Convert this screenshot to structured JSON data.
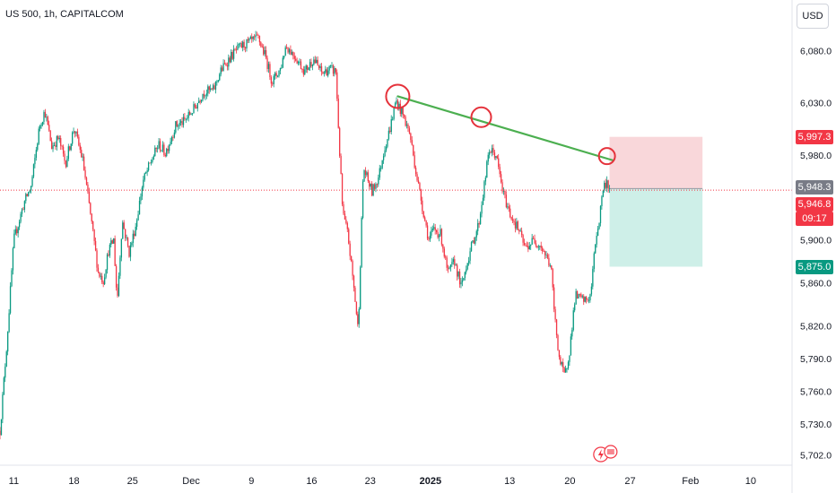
{
  "header": {
    "symbol": "US 500, 1h, CAPITALCOM",
    "currency": "USD"
  },
  "colors": {
    "up": "#089981",
    "down": "#f23645",
    "trendline": "#4caf50",
    "stop_zone": "#f7c9cd",
    "target_zone": "#c2ebe2",
    "circle": "#e5323b",
    "last_price_bg": "#787b86",
    "axis_text": "#131722",
    "grid": "#f0f3fa"
  },
  "chart_data": {
    "type": "candlestick",
    "instrument": "US 500",
    "timeframe": "1h",
    "source": "CAPITALCOM",
    "y_axis": {
      "ticks": [
        6080,
        6030,
        5980,
        5900,
        5860,
        5820,
        5790,
        5760,
        5730,
        5702
      ],
      "tick_labels": [
        "6,080.0",
        "6,030.0",
        "5,980.0",
        "5,900.0",
        "5,860.0",
        "5,820.0",
        "5,790.0",
        "5,760.0",
        "5,730.0",
        "5,702.0"
      ],
      "scale": "log",
      "range": [
        5696,
        6129
      ]
    },
    "x_axis": {
      "ticks": [
        "11",
        "18",
        "25",
        "Dec",
        "9",
        "16",
        "23",
        "2025",
        "13",
        "20",
        "27",
        "Feb",
        "10"
      ],
      "bold_ticks": [
        "2025"
      ],
      "range_days": [
        0,
        92
      ]
    },
    "price_path": [
      [
        0.0,
        5724
      ],
      [
        0.8,
        5805
      ],
      [
        1.6,
        5900
      ],
      [
        2.8,
        5935
      ],
      [
        3.6,
        5950
      ],
      [
        4.6,
        6008
      ],
      [
        5.2,
        6022
      ],
      [
        6.0,
        5988
      ],
      [
        6.8,
        5996
      ],
      [
        7.6,
        5972
      ],
      [
        8.6,
        6006
      ],
      [
        9.6,
        5975
      ],
      [
        10.4,
        5930
      ],
      [
        11.4,
        5870
      ],
      [
        12.0,
        5862
      ],
      [
        12.6,
        5890
      ],
      [
        13.2,
        5900
      ],
      [
        13.6,
        5842
      ],
      [
        14.2,
        5918
      ],
      [
        15.0,
        5888
      ],
      [
        15.8,
        5915
      ],
      [
        16.6,
        5955
      ],
      [
        17.6,
        5975
      ],
      [
        18.4,
        5990
      ],
      [
        19.2,
        5982
      ],
      [
        20.4,
        6008
      ],
      [
        21.4,
        6012
      ],
      [
        22.6,
        6025
      ],
      [
        23.6,
        6040
      ],
      [
        24.8,
        6042
      ],
      [
        25.6,
        6060
      ],
      [
        26.6,
        6072
      ],
      [
        27.4,
        6080
      ],
      [
        28.2,
        6085
      ],
      [
        29.0,
        6088
      ],
      [
        30.0,
        6092
      ],
      [
        30.8,
        6075
      ],
      [
        31.6,
        6050
      ],
      [
        32.6,
        6063
      ],
      [
        33.2,
        6085
      ],
      [
        34.2,
        6075
      ],
      [
        35.4,
        6060
      ],
      [
        36.4,
        6072
      ],
      [
        37.4,
        6058
      ],
      [
        38.2,
        6062
      ],
      [
        39.0,
        6060
      ],
      [
        39.4,
        5990
      ],
      [
        39.8,
        5925
      ],
      [
        40.4,
        5905
      ],
      [
        41.2,
        5848
      ],
      [
        41.6,
        5815
      ],
      [
        42.2,
        5968
      ],
      [
        43.2,
        5945
      ],
      [
        44.0,
        5960
      ],
      [
        44.6,
        5985
      ],
      [
        45.2,
        6002
      ],
      [
        46.0,
        6032
      ],
      [
        46.8,
        6018
      ],
      [
        47.6,
        6000
      ],
      [
        48.4,
        5960
      ],
      [
        49.2,
        5925
      ],
      [
        49.8,
        5900
      ],
      [
        50.4,
        5910
      ],
      [
        51.2,
        5905
      ],
      [
        52.0,
        5868
      ],
      [
        52.8,
        5880
      ],
      [
        53.6,
        5855
      ],
      [
        54.2,
        5878
      ],
      [
        55.0,
        5900
      ],
      [
        55.6,
        5915
      ],
      [
        56.4,
        5960
      ],
      [
        56.8,
        5985
      ],
      [
        57.6,
        5980
      ],
      [
        58.4,
        5945
      ],
      [
        59.2,
        5925
      ],
      [
        60.2,
        5910
      ],
      [
        61.0,
        5892
      ],
      [
        62.0,
        5900
      ],
      [
        62.8,
        5895
      ],
      [
        63.4,
        5885
      ],
      [
        64.0,
        5875
      ],
      [
        64.4,
        5830
      ],
      [
        65.0,
        5788
      ],
      [
        65.6,
        5773
      ],
      [
        66.2,
        5800
      ],
      [
        66.8,
        5848
      ],
      [
        67.4,
        5845
      ],
      [
        68.0,
        5843
      ],
      [
        68.6,
        5848
      ],
      [
        69.2,
        5902
      ],
      [
        69.6,
        5918
      ],
      [
        70.0,
        5948
      ],
      [
        70.5,
        5955
      ],
      [
        70.8,
        5948.3
      ]
    ],
    "price_labels": {
      "stop_level": "5,997.3",
      "last_price": "5,948.3",
      "current_price": "5,946.8",
      "countdown": "09:17",
      "target_level": "5,875.0"
    },
    "trendline": {
      "start": [
        46.2,
        6036
      ],
      "end": [
        71.2,
        5975
      ]
    },
    "highlighted_peaks": [
      [
        46.2,
        6036
      ],
      [
        55.9,
        6016
      ],
      [
        70.5,
        5979
      ]
    ],
    "position": {
      "type": "short",
      "entry": 5948.3,
      "stop": 5997.3,
      "target": 5875.0,
      "start_day": 70.8,
      "end_day": 81.6
    },
    "events_day": 70.0,
    "grid": false
  }
}
